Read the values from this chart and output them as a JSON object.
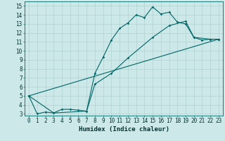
{
  "title": "",
  "xlabel": "Humidex (Indice chaleur)",
  "ylabel": "",
  "xlim": [
    -0.5,
    23.5
  ],
  "ylim": [
    2.8,
    15.5
  ],
  "bg_color": "#cde8e8",
  "grid_color": "#aacccc",
  "line_color": "#006666",
  "line1_x": [
    0,
    1,
    2,
    3,
    4,
    5,
    6,
    7,
    8,
    9,
    10,
    11,
    12,
    13,
    14,
    15,
    16,
    17,
    18,
    19,
    20,
    21,
    22,
    23
  ],
  "line1_y": [
    5.0,
    3.0,
    3.2,
    3.1,
    3.5,
    3.5,
    3.4,
    3.3,
    7.5,
    9.3,
    11.2,
    12.5,
    13.1,
    14.0,
    13.7,
    14.9,
    14.1,
    14.3,
    13.2,
    13.0,
    11.5,
    11.2,
    11.3,
    11.3
  ],
  "line2_x": [
    0,
    3,
    7,
    8,
    10,
    12,
    15,
    17,
    19,
    20,
    22,
    23
  ],
  "line2_y": [
    5.0,
    3.1,
    3.3,
    6.3,
    7.5,
    9.2,
    11.5,
    12.8,
    13.3,
    11.5,
    11.3,
    11.3
  ],
  "line3_x": [
    0,
    23
  ],
  "line3_y": [
    5.0,
    11.3
  ],
  "xticks": [
    0,
    1,
    2,
    3,
    4,
    5,
    6,
    7,
    8,
    9,
    10,
    11,
    12,
    13,
    14,
    15,
    16,
    17,
    18,
    19,
    20,
    21,
    22,
    23
  ],
  "yticks": [
    3,
    4,
    5,
    6,
    7,
    8,
    9,
    10,
    11,
    12,
    13,
    14,
    15
  ],
  "tick_fontsize": 5.5,
  "label_fontsize": 6.5
}
